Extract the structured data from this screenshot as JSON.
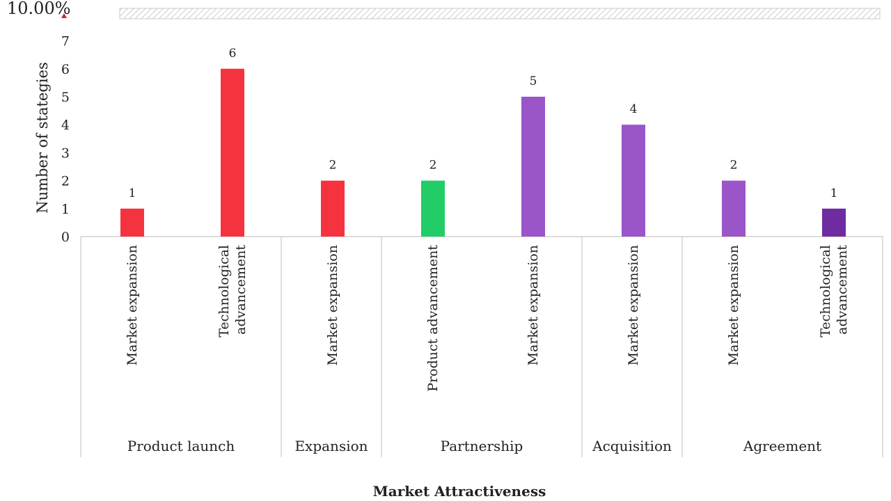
{
  "chart_data": {
    "type": "bar",
    "corner_label": "10.00%",
    "ylabel": "Number of stategies",
    "xlabel": "Market Attractiveness",
    "ylim": [
      0,
      7
    ],
    "yticks": [
      "0",
      "1",
      "2",
      "3",
      "4",
      "5",
      "6",
      "7"
    ],
    "groups": [
      {
        "name": "Product launch",
        "bars": [
          {
            "category": [
              "Market expansion"
            ],
            "value": 1,
            "color": "#f5333f"
          },
          {
            "category": [
              "Technological",
              "advancement"
            ],
            "value": 6,
            "color": "#f5333f"
          }
        ]
      },
      {
        "name": "Expansion",
        "bars": [
          {
            "category": [
              "Market expansion"
            ],
            "value": 2,
            "color": "#f5333f"
          }
        ]
      },
      {
        "name": "Partnership",
        "bars": [
          {
            "category": [
              "Product advancement"
            ],
            "value": 2,
            "color": "#22cc66"
          },
          {
            "category": [
              "Market expansion"
            ],
            "value": 5,
            "color": "#9a55c8"
          }
        ]
      },
      {
        "name": "Acquisition",
        "bars": [
          {
            "category": [
              "Market expansion"
            ],
            "value": 4,
            "color": "#9a55c8"
          }
        ]
      },
      {
        "name": "Agreement",
        "bars": [
          {
            "category": [
              "Market expansion"
            ],
            "value": 2,
            "color": "#9a55c8"
          },
          {
            "category": [
              "Technological",
              "advancement"
            ],
            "value": 1,
            "color": "#6e2ca0"
          }
        ]
      }
    ]
  }
}
